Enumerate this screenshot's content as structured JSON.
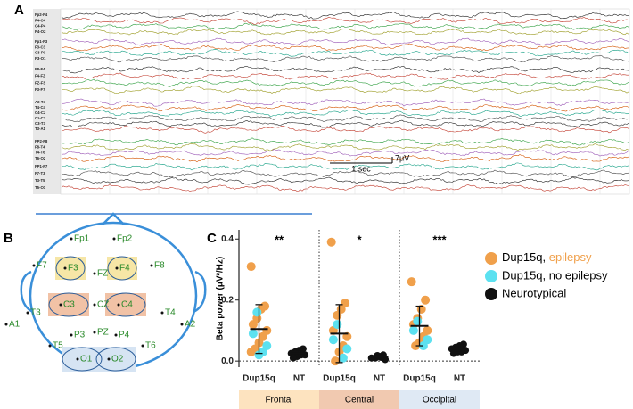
{
  "panel_a": {
    "label": "A",
    "channels": [
      "Fp2-F4",
      "F4-C4",
      "C4-P4",
      "P4-O2",
      "Fp1-F3",
      "F3-C3",
      "C3-P3",
      "P3-O1",
      "F8-F4",
      "F4-FZ",
      "FZ-F3",
      "F3-F7",
      "A2-T4",
      "T4-C4",
      "C4-Cz",
      "Cz-C3",
      "C3-T3",
      "T3-A1",
      "FP2-F8",
      "F8-T4",
      "T4-T6",
      "T6-O2",
      "FP1-F7",
      "F7-T3",
      "T3-T5",
      "T5-O1"
    ],
    "time_scale": "1 sec",
    "amplitude_scale": "7μV"
  },
  "panel_b": {
    "label": "B",
    "electrodes": [
      "Fp1",
      "Fp2",
      "F7",
      "F3",
      "FZ",
      "F4",
      "F8",
      "T3",
      "C3",
      "CZ",
      "C4",
      "T4",
      "A1",
      "A2",
      "T5",
      "P3",
      "PZ",
      "P4",
      "T6",
      "O1",
      "O2"
    ]
  },
  "panel_c_label": "C",
  "chart_data": {
    "type": "strip",
    "y_label": "Beta power (μV²/Hz)",
    "categories": [
      "Dup15q",
      "NT",
      "Dup15q",
      "NT",
      "Dup15q",
      "NT"
    ],
    "regions": [
      {
        "name": "Frontal",
        "color": "#fde3bf",
        "significance": "**"
      },
      {
        "name": "Central",
        "color": "#f1c9b0",
        "significance": "*"
      },
      {
        "name": "Occipital",
        "color": "#dfe9f4",
        "significance": "***"
      }
    ],
    "ylim": [
      -0.02,
      0.43
    ],
    "yticks": [
      {
        "value": 0,
        "label": "0.0"
      },
      0.2,
      0.4
    ],
    "legend": "right",
    "series": [
      {
        "name": "Dup15q, epilepsy",
        "color": "#f0a04b",
        "values": [
          [
            0.31,
            0.18,
            0.17,
            0.14,
            0.12,
            0.1,
            0.08,
            0.06,
            0.04,
            0.03
          ],
          [],
          [
            0.39,
            0.19,
            0.17,
            0.15,
            0.1,
            0.08,
            0.05,
            0.03,
            0.0
          ],
          [],
          [
            0.26,
            0.2,
            0.17,
            0.14,
            0.12,
            0.1,
            0.08,
            0.06,
            0.05
          ],
          []
        ]
      },
      {
        "name": "Dup15q, no epilepsy",
        "color": "#5ce1f0",
        "values": [
          [
            0.16,
            0.09,
            0.05,
            0.03,
            0.02
          ],
          [],
          [
            0.12,
            0.07,
            0.04,
            0.01
          ],
          [],
          [
            0.13,
            0.1,
            0.07,
            0.05
          ],
          []
        ]
      },
      {
        "name": "Neurotypical",
        "color": "#111111",
        "values": [
          [],
          [
            0.04,
            0.035,
            0.03,
            0.025,
            0.02,
            0.02,
            0.015,
            0.01
          ],
          [],
          [
            0.02,
            0.015,
            0.01,
            0.01,
            0.005,
            0.012,
            0.018
          ],
          [],
          [
            0.055,
            0.05,
            0.045,
            0.04,
            0.035,
            0.03,
            0.03,
            0.025
          ]
        ]
      }
    ],
    "means": [
      0.105,
      0.025,
      0.09,
      0.013,
      0.115,
      0.04
    ],
    "errors": [
      0.08,
      0.012,
      0.095,
      0.007,
      0.065,
      0.012
    ]
  }
}
